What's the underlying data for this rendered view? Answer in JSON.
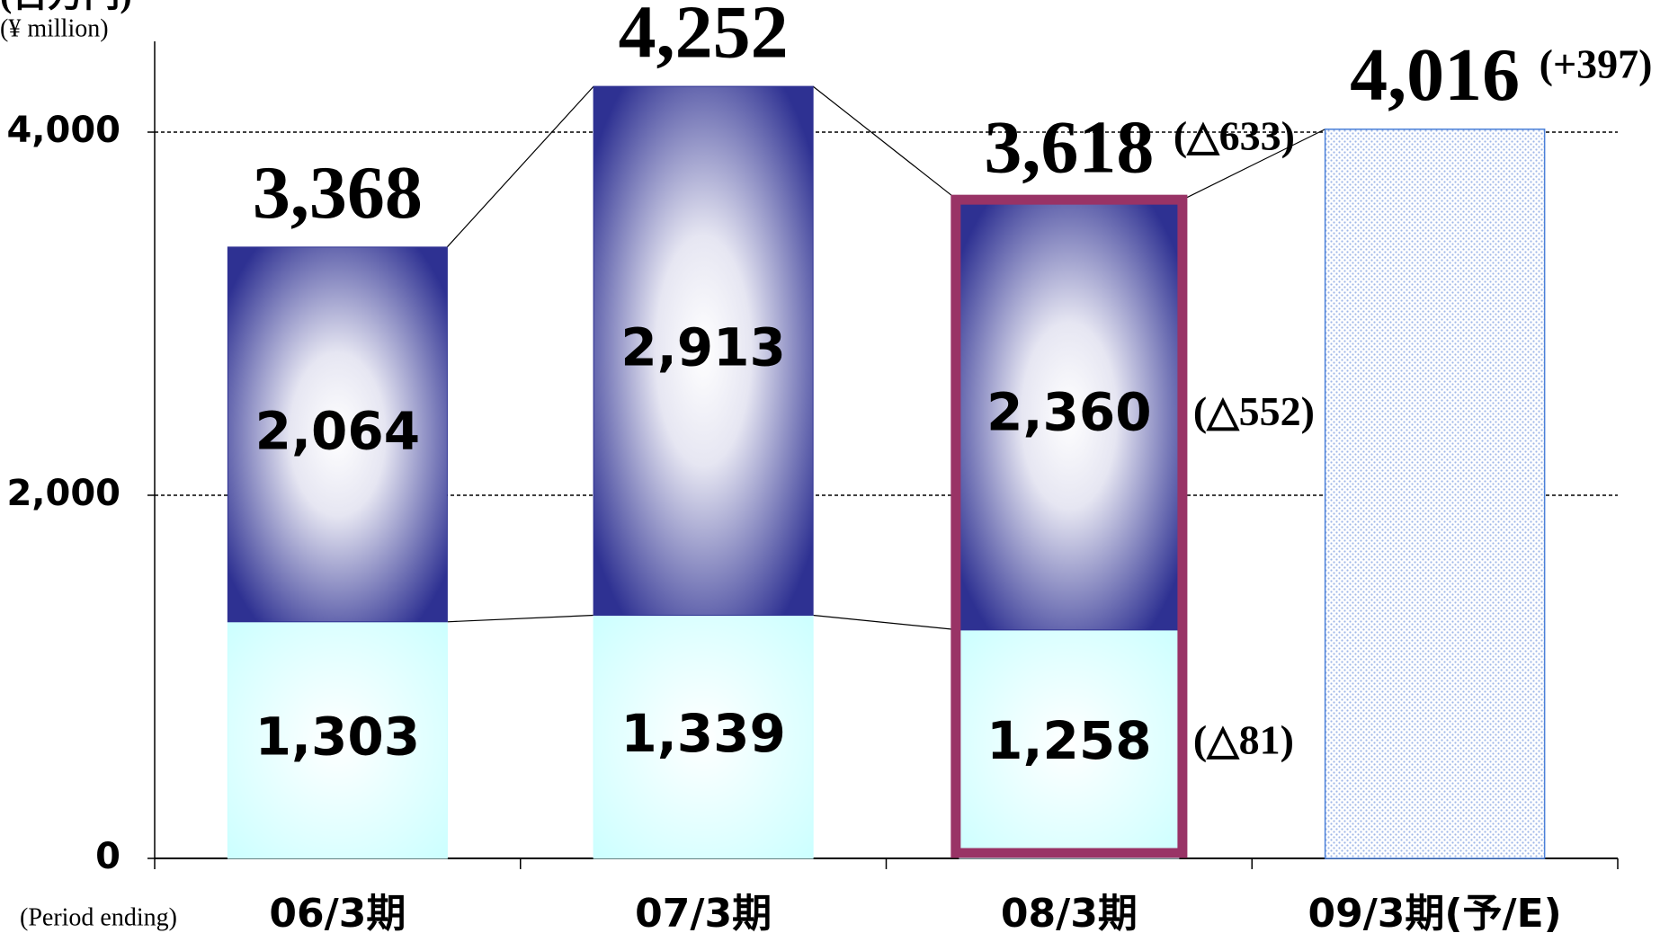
{
  "chart_data": {
    "type": "stacked_bar",
    "y_label": "(百万円)",
    "y_unit": "(¥ million)",
    "x_label": "(Period ending)",
    "categories": [
      "06/3期",
      "07/3期",
      "08/3期",
      "09/3期(予/E)"
    ],
    "ylim": [
      0,
      4500
    ],
    "yticks": [
      0,
      {
        "value": 2000,
        "label": "2,000"
      },
      {
        "value": 4000,
        "label": "4,000"
      }
    ],
    "grid": true,
    "highlight": 2,
    "series": [
      {
        "color": "#ccffff",
        "values": [
          1303,
          1339,
          1258,
          null
        ],
        "value_labels": [
          "1,303",
          "1,339",
          "1,258",
          null
        ],
        "change_labels": [
          null,
          null,
          "(△81)",
          null
        ]
      },
      {
        "color": "#2e3192",
        "values": [
          2064,
          2913,
          2360,
          null
        ],
        "value_labels": [
          "2,064",
          "2,913",
          "2,360",
          null
        ],
        "change_labels": [
          null,
          null,
          "(△552)",
          null
        ]
      },
      {
        "color": "#4a7fd8",
        "values": [
          null,
          null,
          null,
          4016
        ]
      }
    ],
    "totals": {
      "values": [
        3368,
        4252,
        3618,
        4016
      ],
      "value_labels": [
        "3,368",
        "4,252",
        "3,618",
        "4,016"
      ],
      "change_labels": [
        null,
        null,
        "(△633)",
        "(+397)"
      ]
    }
  }
}
